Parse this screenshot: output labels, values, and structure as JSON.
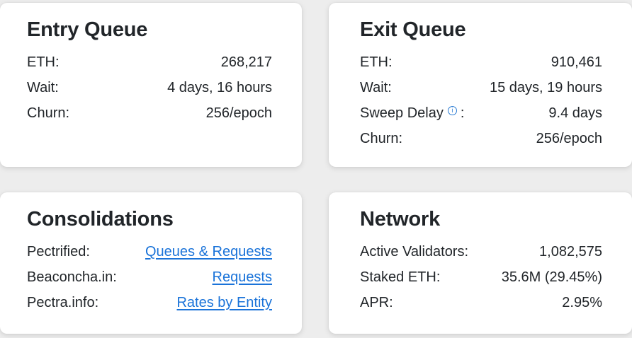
{
  "colors": {
    "background": "#ededed",
    "card_background": "#ffffff",
    "text": "#212529",
    "link": "#1a73d9",
    "info_icon": "#2b7cd3"
  },
  "cards": {
    "entry_queue": {
      "title": "Entry Queue",
      "rows": [
        {
          "label": "ETH:",
          "value": "268,217"
        },
        {
          "label": "Wait:",
          "value": "4 days, 16 hours"
        },
        {
          "label": "Churn:",
          "value": "256/epoch"
        }
      ]
    },
    "exit_queue": {
      "title": "Exit Queue",
      "rows": [
        {
          "label": "ETH:",
          "value": "910,461"
        },
        {
          "label": "Wait:",
          "value": "15 days, 19 hours"
        },
        {
          "label": "Sweep Delay",
          "label_suffix": ":",
          "info_glyph": "i",
          "value": "9.4 days"
        },
        {
          "label": "Churn:",
          "value": "256/epoch"
        }
      ]
    },
    "consolidations": {
      "title": "Consolidations",
      "rows": [
        {
          "label": "Pectrified:",
          "link": "Queues & Requests"
        },
        {
          "label": "Beaconcha.in:",
          "link": "Requests"
        },
        {
          "label": "Pectra.info:",
          "link": "Rates by Entity"
        }
      ]
    },
    "network": {
      "title": "Network",
      "rows": [
        {
          "label": "Active Validators:",
          "value": "1,082,575"
        },
        {
          "label": "Staked ETH:",
          "value": "35.6M (29.45%)"
        },
        {
          "label": "APR:",
          "value": "2.95%"
        }
      ]
    }
  }
}
